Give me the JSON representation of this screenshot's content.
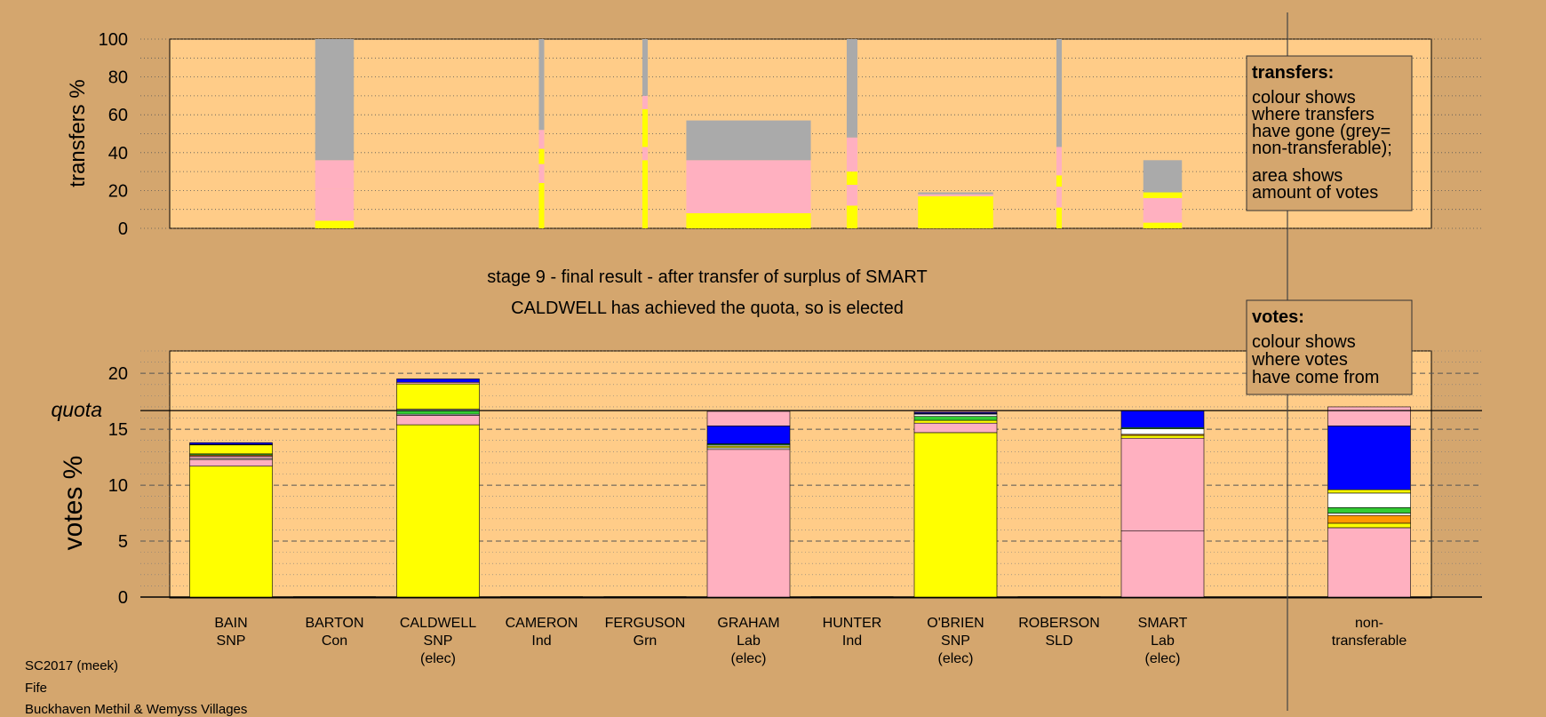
{
  "chart_data": [
    {
      "type": "bar",
      "stacked": true,
      "panel": "transfers",
      "ylabel": "transfers %",
      "ylim": [
        0,
        100
      ],
      "yticks": [
        0,
        20,
        40,
        60,
        80,
        100
      ],
      "grid": "dotted",
      "candidates": [
        "BAIN",
        "BARTON",
        "CALDWELL",
        "CAMERON",
        "FERGUSON",
        "GRAHAM",
        "HUNTER",
        "O'BRIEN",
        "ROBERSON",
        "SMART"
      ],
      "bars": [
        {
          "candidate": "BARTON",
          "width_votes": 0.9,
          "segments": [
            {
              "source": "SNP",
              "color": "#FFFF00",
              "from": 0,
              "to": 4
            },
            {
              "source": "Lab",
              "color": "#FFB0C0",
              "from": 4,
              "to": 21
            },
            {
              "source": "Lab",
              "color": "#FFB0C0",
              "from": 21,
              "to": 36
            },
            {
              "source": "non-transferable",
              "color": "#AAAAAA",
              "from": 36,
              "to": 100
            }
          ]
        },
        {
          "candidate": "CAMERON",
          "width_votes": 0.12,
          "segments": [
            {
              "source": "SNP",
              "color": "#FFFF00",
              "from": 0,
              "to": 24
            },
            {
              "source": "Lab",
              "color": "#FFB0C0",
              "from": 24,
              "to": 34
            },
            {
              "source": "SNP",
              "color": "#FFFF00",
              "from": 34,
              "to": 42
            },
            {
              "source": "Lab",
              "color": "#FFB0C0",
              "from": 42,
              "to": 52
            },
            {
              "source": "non-transferable",
              "color": "#AAAAAA",
              "from": 52,
              "to": 100
            }
          ]
        },
        {
          "candidate": "FERGUSON",
          "width_votes": 0.12,
          "segments": [
            {
              "source": "SNP",
              "color": "#FFFF00",
              "from": 0,
              "to": 36
            },
            {
              "source": "Lab",
              "color": "#FFB0C0",
              "from": 36,
              "to": 43
            },
            {
              "source": "SNP",
              "color": "#FFFF00",
              "from": 43,
              "to": 63
            },
            {
              "source": "Lab",
              "color": "#FFB0C0",
              "from": 63,
              "to": 70
            },
            {
              "source": "non-transferable",
              "color": "#AAAAAA",
              "from": 70,
              "to": 100
            }
          ]
        },
        {
          "candidate": "GRAHAM",
          "width_votes": 2.9,
          "segments": [
            {
              "source": "SNP",
              "color": "#FFFF00",
              "from": 0,
              "to": 8
            },
            {
              "source": "Lab",
              "color": "#FFB0C0",
              "from": 8,
              "to": 36
            },
            {
              "source": "non-transferable",
              "color": "#AAAAAA",
              "from": 36,
              "to": 57
            }
          ]
        },
        {
          "candidate": "HUNTER",
          "width_votes": 0.25,
          "segments": [
            {
              "source": "SNP",
              "color": "#FFFF00",
              "from": 0,
              "to": 12
            },
            {
              "source": "Lab",
              "color": "#FFB0C0",
              "from": 12,
              "to": 23
            },
            {
              "source": "SNP",
              "color": "#FFFF00",
              "from": 23,
              "to": 30
            },
            {
              "source": "Lab",
              "color": "#FFB0C0",
              "from": 30,
              "to": 48
            },
            {
              "source": "non-transferable",
              "color": "#AAAAAA",
              "from": 48,
              "to": 100
            }
          ]
        },
        {
          "candidate": "O'BRIEN",
          "width_votes": 1.75,
          "segments": [
            {
              "source": "SNP",
              "color": "#FFFF00",
              "from": 0,
              "to": 17
            },
            {
              "source": "Lab",
              "color": "#FFB0C0",
              "from": 17,
              "to": 18
            },
            {
              "source": "non-transferable",
              "color": "#AAAAAA",
              "from": 18,
              "to": 19
            }
          ]
        },
        {
          "candidate": "ROBERSON",
          "width_votes": 0.1,
          "segments": [
            {
              "source": "SNP",
              "color": "#FFFF00",
              "from": 0,
              "to": 11
            },
            {
              "source": "Lab",
              "color": "#FFB0C0",
              "from": 11,
              "to": 22
            },
            {
              "source": "SNP",
              "color": "#FFFF00",
              "from": 22,
              "to": 28
            },
            {
              "source": "Lab",
              "color": "#FFB0C0",
              "from": 28,
              "to": 43
            },
            {
              "source": "non-transferable",
              "color": "#AAAAAA",
              "from": 43,
              "to": 100
            }
          ]
        },
        {
          "candidate": "SMART",
          "width_votes": 0.9,
          "segments": [
            {
              "source": "SNP",
              "color": "#FFFF00",
              "from": 0,
              "to": 3
            },
            {
              "source": "Lab",
              "color": "#FFB0C0",
              "from": 3,
              "to": 16
            },
            {
              "source": "SNP",
              "color": "#FFFF00",
              "from": 16,
              "to": 19
            },
            {
              "source": "non-transferable",
              "color": "#AAAAAA",
              "from": 19,
              "to": 36
            }
          ]
        }
      ],
      "legend": {
        "title": "transfers:",
        "lines1": [
          "colour shows",
          "where transfers",
          "have gone (grey=",
          "non-transferable);"
        ],
        "lines2": [
          "area shows",
          "amount of votes"
        ]
      }
    },
    {
      "type": "bar",
      "stacked": true,
      "panel": "votes",
      "ylabel": "votes %",
      "ylim": [
        0,
        22
      ],
      "yticks": [
        0,
        5,
        10,
        15,
        20
      ],
      "quota": 16.67,
      "quota_label": "quota",
      "grid": "dashed",
      "categories": [
        {
          "name": "BAIN",
          "party": "SNP",
          "status": ""
        },
        {
          "name": "BARTON",
          "party": "Con",
          "status": ""
        },
        {
          "name": "CALDWELL",
          "party": "SNP",
          "status": "(elec)"
        },
        {
          "name": "CAMERON",
          "party": "Ind",
          "status": ""
        },
        {
          "name": "FERGUSON",
          "party": "Grn",
          "status": ""
        },
        {
          "name": "GRAHAM",
          "party": "Lab",
          "status": "(elec)"
        },
        {
          "name": "HUNTER",
          "party": "Ind",
          "status": ""
        },
        {
          "name": "O'BRIEN",
          "party": "SNP",
          "status": "(elec)"
        },
        {
          "name": "ROBERSON",
          "party": "SLD",
          "status": ""
        },
        {
          "name": "SMART",
          "party": "Lab",
          "status": "(elec)"
        }
      ],
      "nontransferable_label": [
        "non-",
        "transferable"
      ],
      "stacks": [
        {
          "candidate": "BAIN",
          "segments": [
            {
              "source": "SNP",
              "color": "#FFFF00",
              "value": 11.7
            },
            {
              "source": "Lab",
              "color": "#FFB0C0",
              "value": 0.6
            },
            {
              "source": "Con",
              "color": "#FFFFFF",
              "value": 0.1
            },
            {
              "source": "Lab",
              "color": "#FFB0C0",
              "value": 0.2
            },
            {
              "source": "Ind",
              "color": "#FF9900",
              "value": 0.1
            },
            {
              "source": "Grn",
              "color": "#33CC33",
              "value": 0.1
            },
            {
              "source": "SNP",
              "color": "#FFFF00",
              "value": 0.8
            },
            {
              "source": "Ind",
              "color": "#FFFFFF",
              "value": 0.05
            },
            {
              "source": "SLD",
              "color": "#0000FF",
              "value": 0.15
            }
          ]
        },
        {
          "candidate": "BARTON",
          "segments": []
        },
        {
          "candidate": "CALDWELL",
          "segments": [
            {
              "source": "SNP",
              "color": "#FFFF00",
              "value": 15.4
            },
            {
              "source": "Lab",
              "color": "#FFB0C0",
              "value": 0.85
            },
            {
              "source": "Con",
              "color": "#FFFFFF",
              "value": 0.1
            },
            {
              "source": "Grn",
              "color": "#33CC33",
              "value": 0.35
            },
            {
              "source": "Ind",
              "color": "#FFFFFF",
              "value": 0.1
            },
            {
              "source": "SNP",
              "color": "#FFFF00",
              "value": 2.25
            },
            {
              "source": "Lab",
              "color": "#FFB0C0",
              "value": 0.15
            },
            {
              "source": "SLD",
              "color": "#0000FF",
              "value": 0.3
            }
          ]
        },
        {
          "candidate": "CAMERON",
          "segments": []
        },
        {
          "candidate": "FERGUSON",
          "segments": []
        },
        {
          "candidate": "GRAHAM",
          "segments": [
            {
              "source": "Lab",
              "color": "#FFB0C0",
              "value": 13.2
            },
            {
              "source": "Con",
              "color": "#FFFFFF",
              "value": 0.15
            },
            {
              "source": "SNP",
              "color": "#FFFF00",
              "value": 0.15
            },
            {
              "source": "Ind",
              "color": "#FFFFFF",
              "value": 0.1
            },
            {
              "source": "Grn",
              "color": "#33CC33",
              "value": 0.1
            },
            {
              "source": "SLD",
              "color": "#0000FF",
              "value": 1.6
            },
            {
              "source": "Lab",
              "color": "#FFB0C0",
              "value": 1.3
            }
          ]
        },
        {
          "candidate": "HUNTER",
          "segments": []
        },
        {
          "candidate": "O'BRIEN",
          "segments": [
            {
              "source": "SNP",
              "color": "#FFFF00",
              "value": 14.7
            },
            {
              "source": "Lab",
              "color": "#FFB0C0",
              "value": 0.85
            },
            {
              "source": "SNP",
              "color": "#FFFF00",
              "value": 0.25
            },
            {
              "source": "Grn",
              "color": "#33CC33",
              "value": 0.35
            },
            {
              "source": "Con",
              "color": "#FFFFFF",
              "value": 0.2
            },
            {
              "source": "Ind",
              "color": "#FF9900",
              "value": 0.05
            },
            {
              "source": "SLD",
              "color": "#0000FF",
              "value": 0.1
            },
            {
              "source": "Lab",
              "color": "#FFB0C0",
              "value": 0.1
            }
          ]
        },
        {
          "candidate": "ROBERSON",
          "segments": []
        },
        {
          "candidate": "SMART",
          "segments": [
            {
              "source": "Lab",
              "color": "#FFB0C0",
              "value": 5.9
            },
            {
              "source": "Lab",
              "color": "#FFB0C0",
              "value": 8.3
            },
            {
              "source": "SNP",
              "color": "#FFFF00",
              "value": 0.25
            },
            {
              "source": "Ind",
              "color": "#FF9900",
              "value": 0.1
            },
            {
              "source": "Con",
              "color": "#FFFFFF",
              "value": 0.5
            },
            {
              "source": "Grn",
              "color": "#33CC33",
              "value": 0.1
            },
            {
              "source": "SLD",
              "color": "#0000FF",
              "value": 1.5
            }
          ]
        }
      ],
      "nontransferable": [
        {
          "source": "Lab",
          "color": "#FFB0C0",
          "value": 6.2
        },
        {
          "source": "SNP",
          "color": "#FFFF00",
          "value": 0.4
        },
        {
          "source": "Ind",
          "color": "#FF9900",
          "value": 0.7
        },
        {
          "source": "Ind",
          "color": "#FFFFFF",
          "value": 0.2
        },
        {
          "source": "Grn",
          "color": "#33CC33",
          "value": 0.5
        },
        {
          "source": "Con",
          "color": "#FFFFFF",
          "value": 1.3
        },
        {
          "source": "SNP",
          "color": "#FFFF00",
          "value": 0.3
        },
        {
          "source": "SLD",
          "color": "#0000FF",
          "value": 5.7
        },
        {
          "source": "Lab",
          "color": "#FFB0C0",
          "value": 1.7
        }
      ],
      "legend": {
        "title": "votes:",
        "lines": [
          "colour shows",
          "where votes",
          "have come from"
        ]
      }
    }
  ],
  "stage_title": "stage 9 - final result - after transfer of surplus of SMART",
  "stage_subtitle": "CALDWELL has achieved the quota, so is elected",
  "footer": {
    "line1": "SC2017 (meek)",
    "line2": "Fife",
    "line3": "Buckhaven Methil & Wemyss Villages"
  },
  "colors": {
    "page_bg": "#D4A66E",
    "plot_bg": "#FFCC88",
    "nontransferable_grey": "#AAAAAA"
  }
}
